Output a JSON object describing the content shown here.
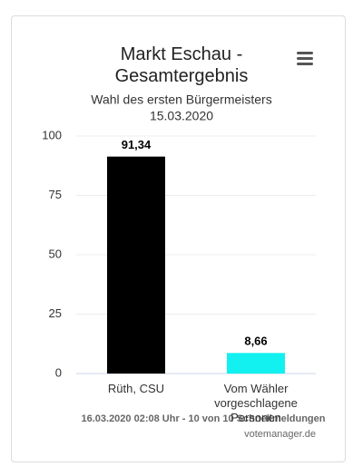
{
  "chart_data": {
    "type": "bar",
    "title": "Markt Eschau - Gesamtergebnis",
    "subtitle": [
      "Wahl des ersten Bürgermeisters",
      "15.03.2020"
    ],
    "categories": [
      "Rüth, CSU",
      "Vom Wähler vorgeschlagene Personen"
    ],
    "values": [
      91.34,
      8.66
    ],
    "value_labels": [
      "91,34",
      "8,66"
    ],
    "colors": [
      "#000000",
      "#13f0f0"
    ],
    "ylim": [
      0,
      100
    ],
    "yticks": [
      0,
      25,
      50,
      75,
      100
    ],
    "grid": true,
    "caption": "16.03.2020 02:08 Uhr - 10 von 10 Schnellmeldungen",
    "credits": "votemanager.de"
  }
}
